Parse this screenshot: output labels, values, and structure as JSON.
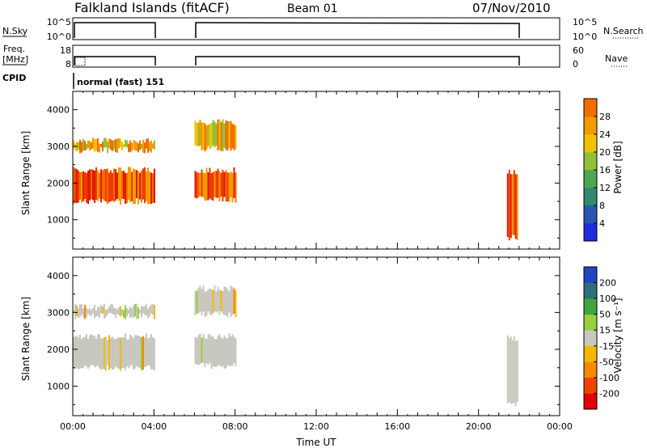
{
  "header": {
    "title": "Falkland Islands (fitACF)",
    "beam": "Beam 01",
    "date": "07/Nov/2010"
  },
  "panels": {
    "nsky": {
      "label": "N.Sky",
      "right_label": "N.Search",
      "ticks_left": [
        "10^5",
        "10^0"
      ],
      "ticks_right": [
        "10^5",
        "10^0"
      ]
    },
    "freq": {
      "label_line1": "Freq.",
      "label_line2": "[MHz]",
      "right_label": "Nave",
      "ticks_left": [
        "18",
        "8"
      ],
      "ticks_right": [
        "60",
        "0"
      ]
    },
    "cpid": {
      "label": "CPID",
      "value": "normal (fast) 151"
    }
  },
  "colors": {
    "power": [
      "#1f2be0",
      "#2b55b5",
      "#2f8a6e",
      "#4fa651",
      "#8fc23a",
      "#f2c200",
      "#f29a00",
      "#f26d00",
      "#ee3c00",
      "#e21a00"
    ],
    "velocity": [
      "#e20000",
      "#ee4400",
      "#f58a00",
      "#f5b800",
      "#c8c8c0",
      "#96d040",
      "#3fa53f",
      "#2f6f7a",
      "#2343c0"
    ]
  },
  "chart_data": [
    {
      "type": "heatmap",
      "name": "power",
      "xlabel": "",
      "ylabel": "Slant Range [km]",
      "ylim": [
        200,
        4500
      ],
      "xlim": [
        0,
        24
      ],
      "yticks": [
        "1000",
        "2000",
        "3000",
        "4000"
      ],
      "colorbar": {
        "label": "Power [dB]",
        "ticks": [
          "4",
          "8",
          "12",
          "16",
          "20",
          "24",
          "28"
        ],
        "range": [
          0,
          32
        ]
      },
      "echo_regions": [
        {
          "t_start": 0.0,
          "t_end": 4.0,
          "r_low": 1500,
          "r_high": 2350,
          "level": "high"
        },
        {
          "t_start": 0.0,
          "t_end": 4.0,
          "r_low": 2900,
          "r_high": 3150,
          "level": "mid"
        },
        {
          "t_start": 6.0,
          "t_end": 8.0,
          "r_low": 1550,
          "r_high": 2350,
          "level": "high"
        },
        {
          "t_start": 6.0,
          "t_end": 8.0,
          "r_low": 2950,
          "r_high": 3650,
          "level": "mid"
        },
        {
          "t_start": 21.4,
          "t_end": 21.9,
          "r_low": 500,
          "r_high": 2300,
          "level": "high"
        }
      ]
    },
    {
      "type": "heatmap",
      "name": "velocity",
      "xlabel": "Time UT",
      "ylabel": "Slant Range [km]",
      "ylim": [
        200,
        4500
      ],
      "xlim": [
        0,
        24
      ],
      "xticks": [
        "00:00",
        "04:00",
        "08:00",
        "12:00",
        "16:00",
        "20:00",
        "00:00"
      ],
      "yticks": [
        "1000",
        "2000",
        "3000",
        "4000"
      ],
      "colorbar": {
        "label": "Velocity [m s⁻¹]",
        "ticks": [
          "-200",
          "-100",
          "-50",
          "-15",
          "15",
          "50",
          "100",
          "200"
        ]
      },
      "echo_regions": [
        {
          "t_start": 0.0,
          "t_end": 4.0,
          "r_low": 1500,
          "r_high": 2350,
          "level": "ground"
        },
        {
          "t_start": 0.0,
          "t_end": 4.0,
          "r_low": 2900,
          "r_high": 3150,
          "level": "ground"
        },
        {
          "t_start": 6.0,
          "t_end": 8.0,
          "r_low": 1550,
          "r_high": 2350,
          "level": "ground"
        },
        {
          "t_start": 6.0,
          "t_end": 8.0,
          "r_low": 2950,
          "r_high": 3650,
          "level": "ground"
        },
        {
          "t_start": 21.4,
          "t_end": 21.9,
          "r_low": 500,
          "r_high": 2300,
          "level": "ground"
        }
      ]
    }
  ]
}
